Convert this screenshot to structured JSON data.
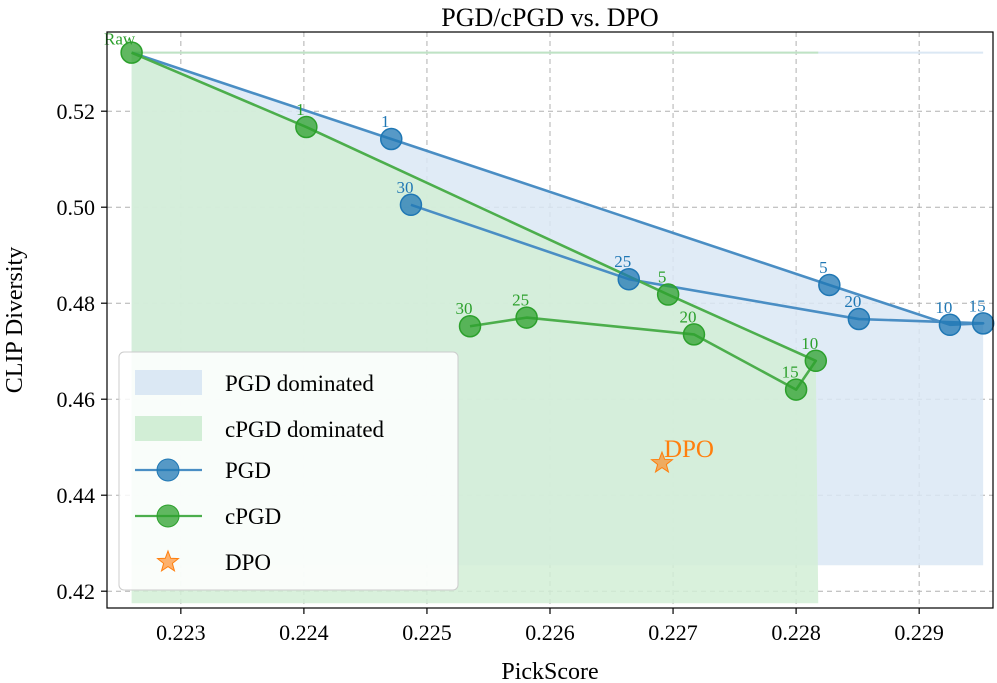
{
  "chart_data": {
    "type": "line",
    "title": "PGD/cPGD vs. DPO",
    "xlabel": "PickScore",
    "ylabel": "CLIP Diversity",
    "xlim": [
      0.2224,
      0.2296
    ],
    "ylim": [
      0.4165,
      0.5365
    ],
    "xticks": [
      0.223,
      0.224,
      0.225,
      0.226,
      0.227,
      0.228,
      0.229
    ],
    "xtick_labels": [
      "0.223",
      "0.224",
      "0.225",
      "0.226",
      "0.227",
      "0.228",
      "0.229"
    ],
    "yticks": [
      0.42,
      0.44,
      0.46,
      0.48,
      0.5,
      0.52
    ],
    "ytick_labels": [
      "0.42",
      "0.44",
      "0.46",
      "0.48",
      "0.50",
      "0.52"
    ],
    "grid": true,
    "legend_position": "lower-left",
    "colors": {
      "pgd": "#1f77b4",
      "pgd_line": "#4a8ec4",
      "cpgd": "#2ca02c",
      "cpgd_line": "#4cae4c",
      "dpo": "#ff7f0e",
      "pgd_fill": "#dbe8f4",
      "cpgd_fill": "#d2eed6"
    },
    "raw_point": {
      "x": 0.2226,
      "y": 0.5322,
      "label": "Raw"
    },
    "series": [
      {
        "name": "PGD",
        "points": [
          {
            "label": "",
            "x": 0.2226,
            "y": 0.5322
          },
          {
            "label": "1",
            "x": 0.22471,
            "y": 0.5142
          },
          {
            "label": "5",
            "x": 0.22827,
            "y": 0.4838
          },
          {
            "label": "10",
            "x": 0.22925,
            "y": 0.4755
          },
          {
            "label": "15",
            "x": 0.22952,
            "y": 0.4758
          },
          {
            "label": "20",
            "x": 0.22851,
            "y": 0.4767
          },
          {
            "label": "25",
            "x": 0.22664,
            "y": 0.485
          },
          {
            "label": "30",
            "x": 0.22487,
            "y": 0.5005
          }
        ]
      },
      {
        "name": "cPGD",
        "points": [
          {
            "label": "",
            "x": 0.2226,
            "y": 0.5322
          },
          {
            "label": "1",
            "x": 0.22402,
            "y": 0.5167
          },
          {
            "label": "5",
            "x": 0.22696,
            "y": 0.4818
          },
          {
            "label": "10",
            "x": 0.22816,
            "y": 0.468
          },
          {
            "label": "15",
            "x": 0.228,
            "y": 0.462
          },
          {
            "label": "20",
            "x": 0.22717,
            "y": 0.4735
          },
          {
            "label": "25",
            "x": 0.22581,
            "y": 0.477
          },
          {
            "label": "30",
            "x": 0.22535,
            "y": 0.4752
          }
        ]
      },
      {
        "name": "DPO",
        "points": [
          {
            "label": "DPO",
            "x": 0.22691,
            "y": 0.4467
          }
        ]
      }
    ],
    "regions": [
      {
        "name": "PGD dominated",
        "x_range": [
          0.2226,
          0.22952
        ],
        "y_floor": 0.4254,
        "y_top": 0.5322
      },
      {
        "name": "cPGD dominated",
        "x_range": [
          0.2226,
          0.22818
        ],
        "y_floor": 0.4175,
        "y_top": 0.5322
      }
    ],
    "legend": [
      "PGD dominated",
      "cPGD dominated",
      "PGD",
      "cPGD",
      "DPO"
    ]
  }
}
